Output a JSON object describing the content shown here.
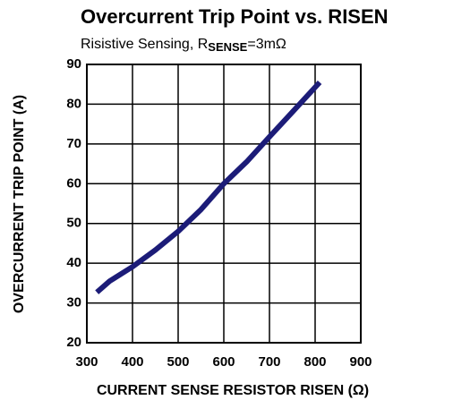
{
  "chart_data": {
    "type": "line",
    "title": "Overcurrent Trip Point vs. RISEN",
    "subtitle": {
      "prefix": "Risistive Sensing, R",
      "subscript": "SENSE",
      "suffix": "=3mΩ"
    },
    "xlabel": "CURRENT SENSE RESISTOR RISEN (Ω)",
    "ylabel": "OVERCURRENT TRIP POINT (A)",
    "x": [
      322,
      350,
      400,
      450,
      500,
      550,
      600,
      650,
      700,
      750,
      810
    ],
    "series": [
      {
        "name": "Trip Point",
        "color": "#1c1c78",
        "values": [
          32.7,
          35.5,
          39.1,
          43.3,
          48,
          53.5,
          60,
          65.5,
          71.8,
          78,
          85.5
        ]
      }
    ],
    "xlim": [
      300,
      900
    ],
    "xticks": [
      300,
      400,
      500,
      600,
      700,
      800,
      900
    ],
    "ylim": [
      20,
      90
    ],
    "yticks": [
      20,
      30,
      40,
      50,
      60,
      70,
      80,
      90
    ],
    "grid": true
  }
}
